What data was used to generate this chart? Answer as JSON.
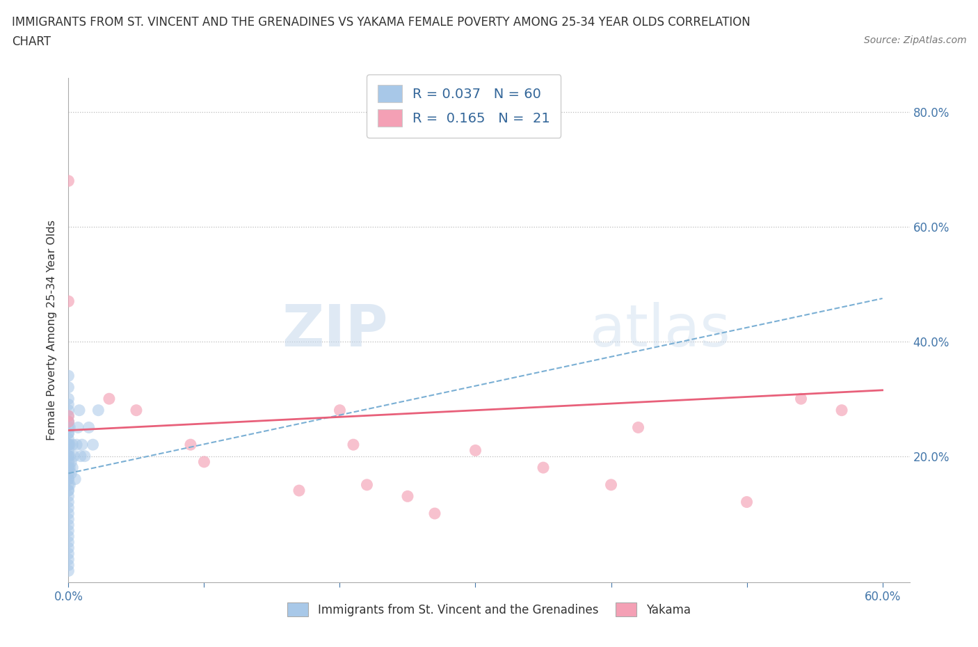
{
  "title_line1": "IMMIGRANTS FROM ST. VINCENT AND THE GRENADINES VS YAKAMA FEMALE POVERTY AMONG 25-34 YEAR OLDS CORRELATION",
  "title_line2": "CHART",
  "source": "Source: ZipAtlas.com",
  "ylabel": "Female Poverty Among 25-34 Year Olds",
  "blue_R": 0.037,
  "blue_N": 60,
  "pink_R": 0.165,
  "pink_N": 21,
  "blue_color": "#a8c8e8",
  "pink_color": "#f4a0b5",
  "blue_line_color": "#7aafd4",
  "pink_line_color": "#e8607a",
  "xlim": [
    0.0,
    0.62
  ],
  "ylim": [
    -0.02,
    0.86
  ],
  "ytick_positions": [
    0.0,
    0.2,
    0.4,
    0.6,
    0.8
  ],
  "ytick_labels": [
    "",
    "20.0%",
    "40.0%",
    "60.0%",
    "80.0%"
  ],
  "blue_scatter_x": [
    0.0,
    0.0,
    0.0,
    0.0,
    0.0,
    0.0,
    0.0,
    0.0,
    0.0,
    0.0,
    0.0,
    0.0,
    0.0,
    0.0,
    0.0,
    0.0,
    0.0,
    0.0,
    0.0,
    0.0,
    0.0,
    0.0,
    0.0,
    0.0,
    0.0,
    0.0,
    0.0,
    0.0,
    0.0,
    0.0,
    0.0,
    0.0,
    0.0,
    0.0,
    0.0,
    0.0,
    0.0,
    0.0,
    0.0,
    0.0,
    0.001,
    0.001,
    0.001,
    0.001,
    0.001,
    0.002,
    0.002,
    0.003,
    0.003,
    0.004,
    0.005,
    0.006,
    0.007,
    0.008,
    0.009,
    0.01,
    0.012,
    0.015,
    0.018,
    0.022
  ],
  "blue_scatter_y": [
    0.32,
    0.3,
    0.29,
    0.28,
    0.27,
    0.26,
    0.25,
    0.24,
    0.23,
    0.22,
    0.21,
    0.2,
    0.19,
    0.18,
    0.17,
    0.16,
    0.15,
    0.14,
    0.13,
    0.12,
    0.11,
    0.1,
    0.09,
    0.08,
    0.07,
    0.06,
    0.05,
    0.04,
    0.03,
    0.02,
    0.01,
    0.0,
    0.18,
    0.16,
    0.14,
    0.22,
    0.24,
    0.26,
    0.2,
    0.34,
    0.15,
    0.18,
    0.2,
    0.22,
    0.25,
    0.17,
    0.19,
    0.18,
    0.22,
    0.2,
    0.16,
    0.22,
    0.25,
    0.28,
    0.2,
    0.22,
    0.2,
    0.25,
    0.22,
    0.28
  ],
  "pink_scatter_x": [
    0.0,
    0.0,
    0.0,
    0.0,
    0.03,
    0.05,
    0.09,
    0.1,
    0.17,
    0.2,
    0.21,
    0.22,
    0.25,
    0.27,
    0.3,
    0.35,
    0.4,
    0.42,
    0.5,
    0.54,
    0.57
  ],
  "pink_scatter_y": [
    0.68,
    0.47,
    0.27,
    0.26,
    0.3,
    0.28,
    0.22,
    0.19,
    0.14,
    0.28,
    0.22,
    0.15,
    0.13,
    0.1,
    0.21,
    0.18,
    0.15,
    0.25,
    0.12,
    0.3,
    0.28
  ],
  "blue_trend_x": [
    0.0,
    0.6
  ],
  "blue_trend_y": [
    0.17,
    0.475
  ],
  "pink_trend_x": [
    0.0,
    0.6
  ],
  "pink_trend_y": [
    0.245,
    0.315
  ],
  "legend_label_blue": "Immigrants from St. Vincent and the Grenadines",
  "legend_label_pink": "Yakama"
}
